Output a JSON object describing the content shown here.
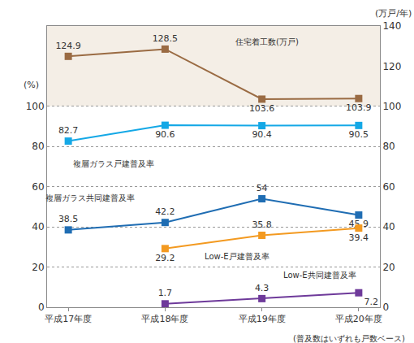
{
  "chart_data": {
    "type": "line",
    "categories": [
      "平成17年度",
      "平成18年度",
      "平成19年度",
      "平成20年度"
    ],
    "y_label": "(%)",
    "y2_label": "(万戸/年)",
    "note": "(普及数はいずれも戸数ベース)",
    "ylim": [
      0,
      140
    ],
    "yticks": [
      0,
      20,
      40,
      60,
      80,
      100
    ],
    "y2lim": [
      0,
      140
    ],
    "y2ticks": [
      0,
      20,
      40,
      60,
      80,
      100,
      120,
      140
    ],
    "grid": true,
    "data_labels": true,
    "marker": "square",
    "series": [
      {
        "name": "住宅着工数(万戸)",
        "color": "#9a6b43",
        "axis": "y2",
        "values": [
          124.9,
          128.5,
          103.6,
          103.9
        ]
      },
      {
        "name": "複層ガラス戸建普及率",
        "color": "#14a8e6",
        "values": [
          82.7,
          90.6,
          90.4,
          90.5
        ]
      },
      {
        "name": "複層ガラス共同建普及率",
        "color": "#1f6db3",
        "values": [
          38.5,
          42.2,
          54,
          45.9
        ]
      },
      {
        "name": "Low-E戸建普及率",
        "color": "#f39a21",
        "values": [
          null,
          29.2,
          35.8,
          39.4
        ]
      },
      {
        "name": "Low-E共同建普及率",
        "color": "#6e3a9a",
        "values": [
          null,
          1.7,
          4.3,
          7.2
        ]
      }
    ]
  }
}
